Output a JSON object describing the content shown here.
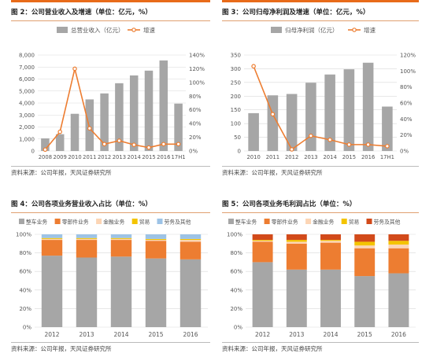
{
  "panels": [
    {
      "title": "图 2：公司营业收入及增速（单位：亿元，%）",
      "source": "资料来源：公司年报，天风证券研究所"
    },
    {
      "title": "图 3：公司归母净利润及增速（单位：亿元，%）",
      "source": "资料来源：公司年报，天风证券研究所"
    },
    {
      "title": "图 4：公司各项业务营业收入占比（单位：%）",
      "source": "资料来源：公司年报，天风证券研究所"
    },
    {
      "title": "图 5：公司各项业务毛利润占比（单位：%）",
      "source": "资料来源：公司年报，天风证券研究所"
    }
  ],
  "colors": {
    "bar": "#a6a6a6",
    "line": "#ed7d31",
    "seg_1": "#a6a6a6",
    "seg_2": "#ed7d31",
    "seg_3": "#fcd5b5",
    "seg_4": "#f4c400",
    "seg_5": "#9dc3e6",
    "seg_red": "#d24a1a"
  },
  "chart_data": [
    {
      "type": "bar",
      "categories": [
        "2008",
        "2009",
        "2010",
        "2011",
        "2012",
        "2013",
        "2014",
        "2015",
        "2016",
        "17H1"
      ],
      "series": [
        {
          "name": "总营业收入（亿元）",
          "type": "bar",
          "axis": "left",
          "values": [
            1050,
            1400,
            3100,
            4300,
            4800,
            5650,
            6300,
            6700,
            7550,
            3950
          ]
        },
        {
          "name": "增速",
          "type": "line",
          "axis": "right",
          "values": [
            2,
            28,
            120,
            33,
            10,
            15,
            9,
            5,
            10,
            10
          ]
        }
      ],
      "ylim": [
        0,
        8000
      ],
      "yticks": [
        "0",
        "1,000",
        "2,000",
        "3,000",
        "4,000",
        "5,000",
        "6,000",
        "7,000",
        "8,000"
      ],
      "y2lim": [
        0,
        140
      ],
      "y2ticks": [
        "0%",
        "20%",
        "40%",
        "60%",
        "80%",
        "100%",
        "120%",
        "140%"
      ],
      "legend": "top",
      "grid": true
    },
    {
      "type": "bar",
      "categories": [
        "2010",
        "2011",
        "2012",
        "2013",
        "2014",
        "2015",
        "2016",
        "17H1"
      ],
      "series": [
        {
          "name": "归母净利润（亿元）",
          "type": "bar",
          "axis": "left",
          "values": [
            138,
            203,
            208,
            249,
            279,
            298,
            322,
            162
          ]
        },
        {
          "name": "增速",
          "type": "line",
          "axis": "right",
          "values": [
            106,
            46,
            2,
            19,
            14,
            8,
            8,
            6
          ]
        }
      ],
      "ylim": [
        0,
        350
      ],
      "yticks": [
        "0",
        "50",
        "100",
        "150",
        "200",
        "250",
        "300",
        "350"
      ],
      "y2lim": [
        0,
        120
      ],
      "y2ticks": [
        "0%",
        "20%",
        "40%",
        "60%",
        "80%",
        "100%",
        "120%"
      ],
      "legend": "top",
      "grid": true
    },
    {
      "type": "bar",
      "stacked": true,
      "categories": [
        "2012",
        "2013",
        "2014",
        "2015",
        "2016"
      ],
      "series": [
        {
          "name": "整车业务",
          "color_key": "seg_1",
          "values": [
            77,
            75,
            76,
            74,
            73
          ]
        },
        {
          "name": "零部件业务",
          "color_key": "seg_2",
          "values": [
            17,
            19,
            18,
            19,
            19
          ]
        },
        {
          "name": "金融业务",
          "color_key": "seg_3",
          "values": [
            1,
            1,
            1,
            1,
            2
          ]
        },
        {
          "name": "贸易",
          "color_key": "seg_4",
          "values": [
            1,
            1,
            1,
            1,
            1
          ]
        },
        {
          "name": "劳务及其他",
          "color_key": "seg_5",
          "values": [
            4,
            4,
            4,
            5,
            5
          ]
        }
      ],
      "ylim": [
        0,
        100
      ],
      "yticks": [
        "0%",
        "20%",
        "40%",
        "60%",
        "80%",
        "100%"
      ],
      "legend": "top",
      "grid": true
    },
    {
      "type": "bar",
      "stacked": true,
      "categories": [
        "2012",
        "2013",
        "2014",
        "2015",
        "2016"
      ],
      "series": [
        {
          "name": "整车业务",
          "color_key": "seg_1",
          "values": [
            70,
            62,
            62,
            55,
            58
          ]
        },
        {
          "name": "零部件业务",
          "color_key": "seg_2",
          "values": [
            22,
            28,
            29,
            30,
            27
          ]
        },
        {
          "name": "金融业务",
          "color_key": "seg_3",
          "values": [
            1,
            2,
            2,
            3,
            4
          ]
        },
        {
          "name": "贸易",
          "color_key": "seg_4",
          "values": [
            1,
            2,
            1,
            4,
            4
          ]
        },
        {
          "name": "劳务及其他",
          "color_key": "seg_red",
          "values": [
            6,
            6,
            6,
            8,
            7
          ]
        }
      ],
      "ylim": [
        0,
        100
      ],
      "yticks": [
        "0%",
        "20%",
        "40%",
        "60%",
        "80%",
        "100%"
      ],
      "legend": "top",
      "grid": true
    }
  ]
}
